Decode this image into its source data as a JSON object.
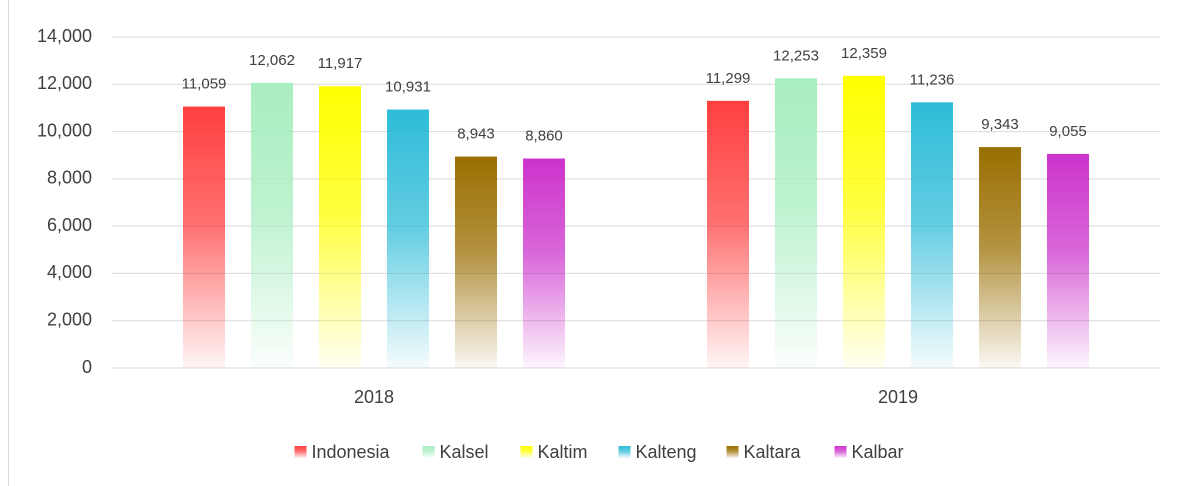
{
  "chart_data": {
    "type": "bar",
    "categories": [
      "2018",
      "2019"
    ],
    "series": [
      {
        "name": "Indonesia",
        "color": "#ff4040",
        "values": [
          11059,
          11299
        ],
        "value_labels": [
          "11,059",
          "11,299"
        ]
      },
      {
        "name": "Kalsel",
        "color": "#a8eec0",
        "values": [
          12062,
          12253
        ],
        "value_labels": [
          "12,062",
          "12,253"
        ]
      },
      {
        "name": "Kaltim",
        "color": "#ffff00",
        "values": [
          11917,
          12359
        ],
        "value_labels": [
          "11,917",
          "12,359"
        ]
      },
      {
        "name": "Kalteng",
        "color": "#2ebcd8",
        "values": [
          10931,
          11236
        ],
        "value_labels": [
          "10,931",
          "11,236"
        ]
      },
      {
        "name": "Kaltara",
        "color": "#9a6e00",
        "values": [
          8943,
          9343
        ],
        "value_labels": [
          "8,943",
          "9,343"
        ]
      },
      {
        "name": "Kalbar",
        "color": "#cc33cc",
        "values": [
          8860,
          9055
        ],
        "value_labels": [
          "8,860",
          "9,055"
        ]
      }
    ],
    "ylim": [
      0,
      14000
    ],
    "yticks": [
      0,
      {
        "value": 2000,
        "label": "2,000"
      },
      {
        "value": 4000,
        "label": "4,000"
      },
      {
        "value": 6000,
        "label": "6,000"
      },
      {
        "value": 8000,
        "label": "8,000"
      },
      {
        "value": 10000,
        "label": "10,000"
      },
      {
        "value": 12000,
        "label": "12,000"
      },
      {
        "value": 14000,
        "label": "14,000"
      }
    ],
    "grid": true,
    "legend": "bottom"
  }
}
